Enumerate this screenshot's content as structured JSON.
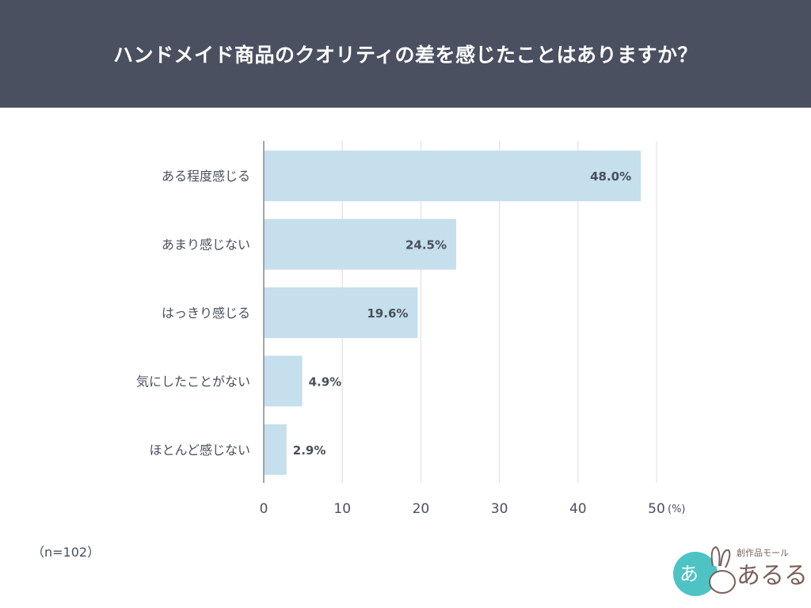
{
  "chart_data": {
    "type": "bar",
    "orientation": "horizontal",
    "title": "ハンドメイド商品のクオリティの差を感じたことはありますか？",
    "categories": [
      "ある程度感じる",
      "あまり感じない",
      "はっきり感じる",
      "気にしたことがない",
      "ほとんど感じない"
    ],
    "values": [
      48.0,
      24.5,
      19.6,
      4.9,
      2.9
    ],
    "data_labels": [
      "48.0%",
      "24.5%",
      "19.6%",
      "4.9%",
      "2.9%"
    ],
    "xlim": [
      0,
      50
    ],
    "xticks": [
      "0",
      "10",
      "20",
      "30",
      "40",
      "50"
    ],
    "x_unit": "(%)",
    "grid": true,
    "bar_color": "#c5dfec"
  },
  "note": "（n=102）",
  "logo": {
    "text": "創作品モール あるる",
    "accent": "#4dc3c3"
  },
  "colors": {
    "header": "#4a5060"
  }
}
